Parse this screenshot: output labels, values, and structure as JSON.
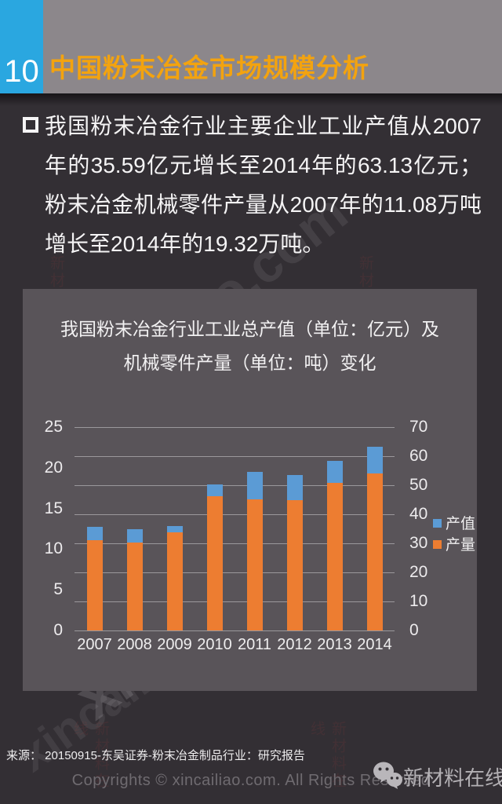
{
  "header": {
    "page_number": "10",
    "title": "中国粉末冶金市场规模分析"
  },
  "bullet": {
    "text": "我国粉末冶金行业主要企业工业产值从2007年的35.59亿元增长至2014年的63.13亿元；粉末冶金机械零件产量从2007年的11.08万吨增长至2014年的19.32万吨。"
  },
  "chart_data": {
    "type": "bar",
    "title_line1": "我国粉末冶金行业工业总产值（单位：亿元）及",
    "title_line2": "机械零件产量（单位：吨）变化",
    "categories": [
      "2007",
      "2008",
      "2009",
      "2010",
      "2011",
      "2012",
      "2013",
      "2014"
    ],
    "series": [
      {
        "name": "产值",
        "axis": "right",
        "color": "#5b9bd5",
        "values": [
          35.59,
          35.0,
          36.0,
          50.3,
          54.5,
          53.5,
          58.5,
          63.13
        ]
      },
      {
        "name": "产量",
        "axis": "left",
        "color": "#ed7d31",
        "values": [
          11.08,
          10.8,
          12.1,
          16.5,
          16.1,
          16.0,
          18.1,
          19.32
        ]
      }
    ],
    "left_axis": {
      "min": 0,
      "max": 25,
      "ticks": [
        "25",
        "20",
        "15",
        "10",
        "5",
        "0"
      ]
    },
    "right_axis": {
      "min": 0,
      "max": 70,
      "ticks": [
        "70",
        "60",
        "50",
        "40",
        "30",
        "20",
        "10",
        "0"
      ]
    },
    "legend": [
      {
        "label": "产值",
        "color": "#5b9bd5"
      },
      {
        "label": "产量",
        "color": "#ed7d31"
      }
    ],
    "legend_position": "right",
    "grid": true
  },
  "footer": {
    "source": "来源： 20150915-东吴证券-粉末冶金制品行业：研究报告",
    "copyright": "Copyrights © xincailiao.com. All Rights Reserved",
    "brand": "新材料在线"
  },
  "watermark": {
    "text": "xincailiao.com",
    "seal_text": "新材料在线"
  },
  "colors": {
    "page_background": "#332f34",
    "header_band": "#8c878b",
    "page_number_box": "#2aa7e0",
    "title_orange": "#f3a30f",
    "panel_background": "#595459",
    "bar_blue": "#5b9bd5",
    "bar_orange": "#ed7d31",
    "gridline": "#a7a4a8"
  }
}
